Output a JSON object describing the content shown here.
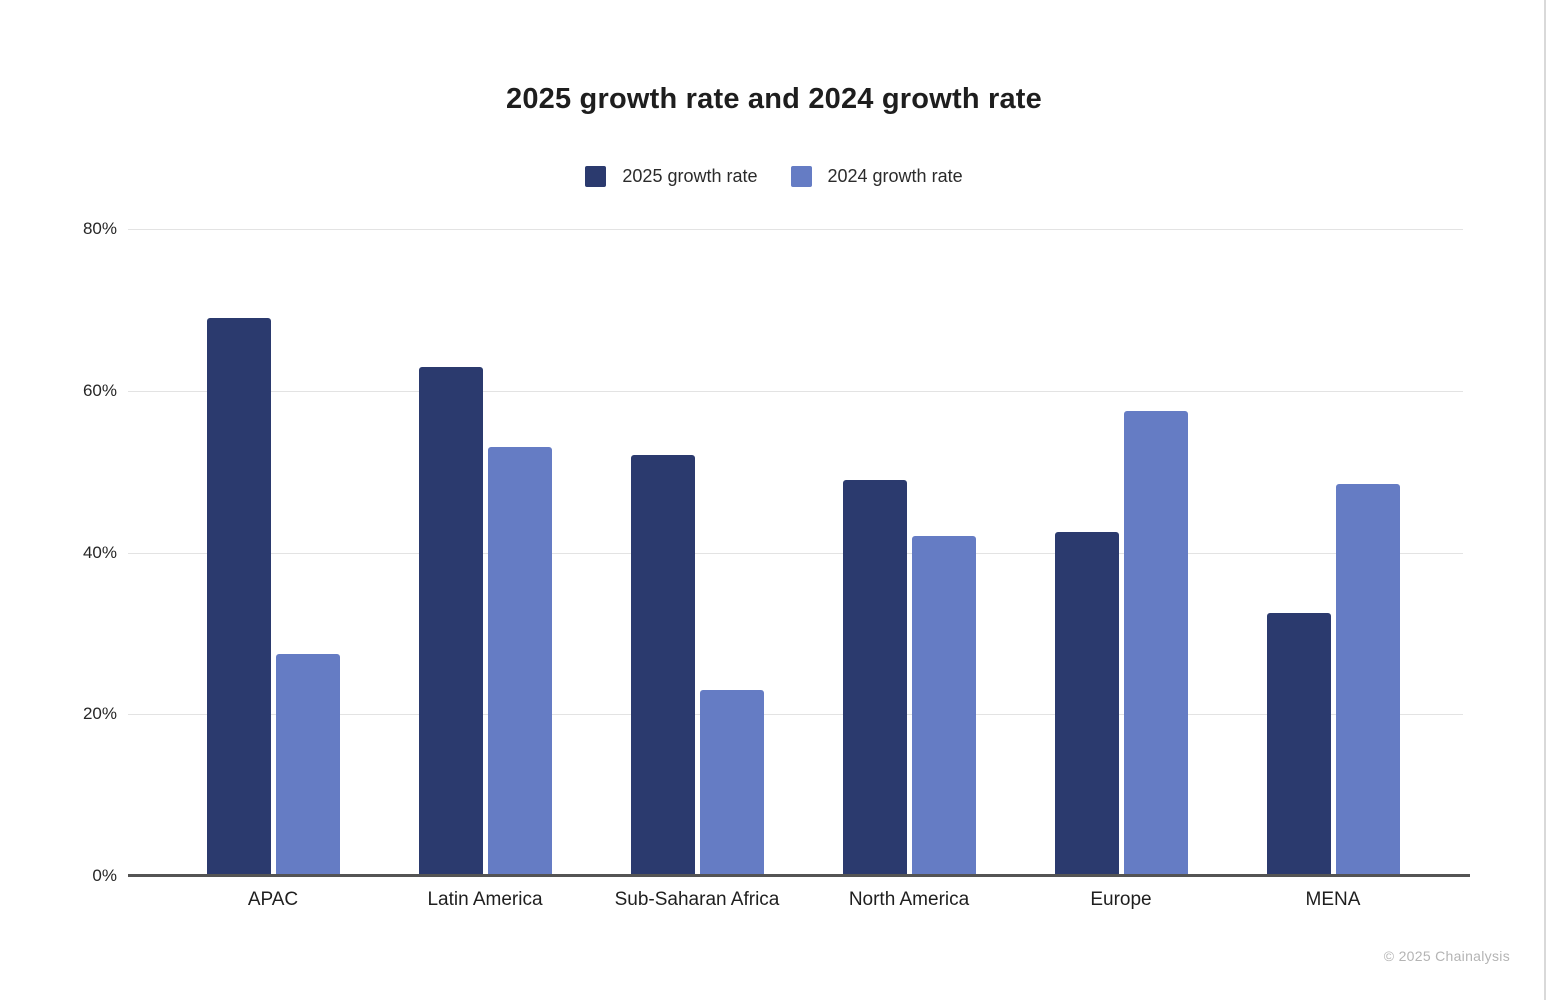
{
  "page": {
    "title": "2025 growth rate and 2024 growth rate",
    "copyright": "© 2025 Chainalysis"
  },
  "colors": {
    "series_2025": "#2b3a6e",
    "series_2024": "#657cc4",
    "gridline": "#e3e3e3",
    "axis_line": "#545454",
    "title_text": "#1e1e1e",
    "tick_text": "#262626",
    "copyright_text": "#b4b4b4",
    "right_edge_line": "#d9d9d9"
  },
  "legend": {
    "items": [
      {
        "label": "2025 growth rate",
        "color": "#2b3a6e"
      },
      {
        "label": "2024 growth rate",
        "color": "#657cc4"
      }
    ]
  },
  "y_axis": {
    "tick_labels": [
      "80%",
      "60%",
      "40%",
      "20%",
      "0%"
    ],
    "tick_values": [
      80,
      60,
      40,
      20,
      0
    ]
  },
  "chart_data": {
    "type": "bar",
    "title": "2025 growth rate and 2024 growth rate",
    "categories": [
      "APAC",
      "Latin America",
      "Sub-Saharan Africa",
      "North America",
      "Europe",
      "MENA"
    ],
    "series": [
      {
        "name": "2025 growth rate",
        "color": "#2b3a6e",
        "values": [
          69,
          63,
          52,
          49,
          42.5,
          32.5
        ]
      },
      {
        "name": "2024 growth rate",
        "color": "#657cc4",
        "values": [
          27.5,
          53,
          23,
          42,
          57.5,
          48.5
        ]
      }
    ],
    "xlabel": "",
    "ylabel": "",
    "ylim": [
      0,
      80
    ],
    "grid": true,
    "legend_position": "top",
    "unit": "percent"
  }
}
